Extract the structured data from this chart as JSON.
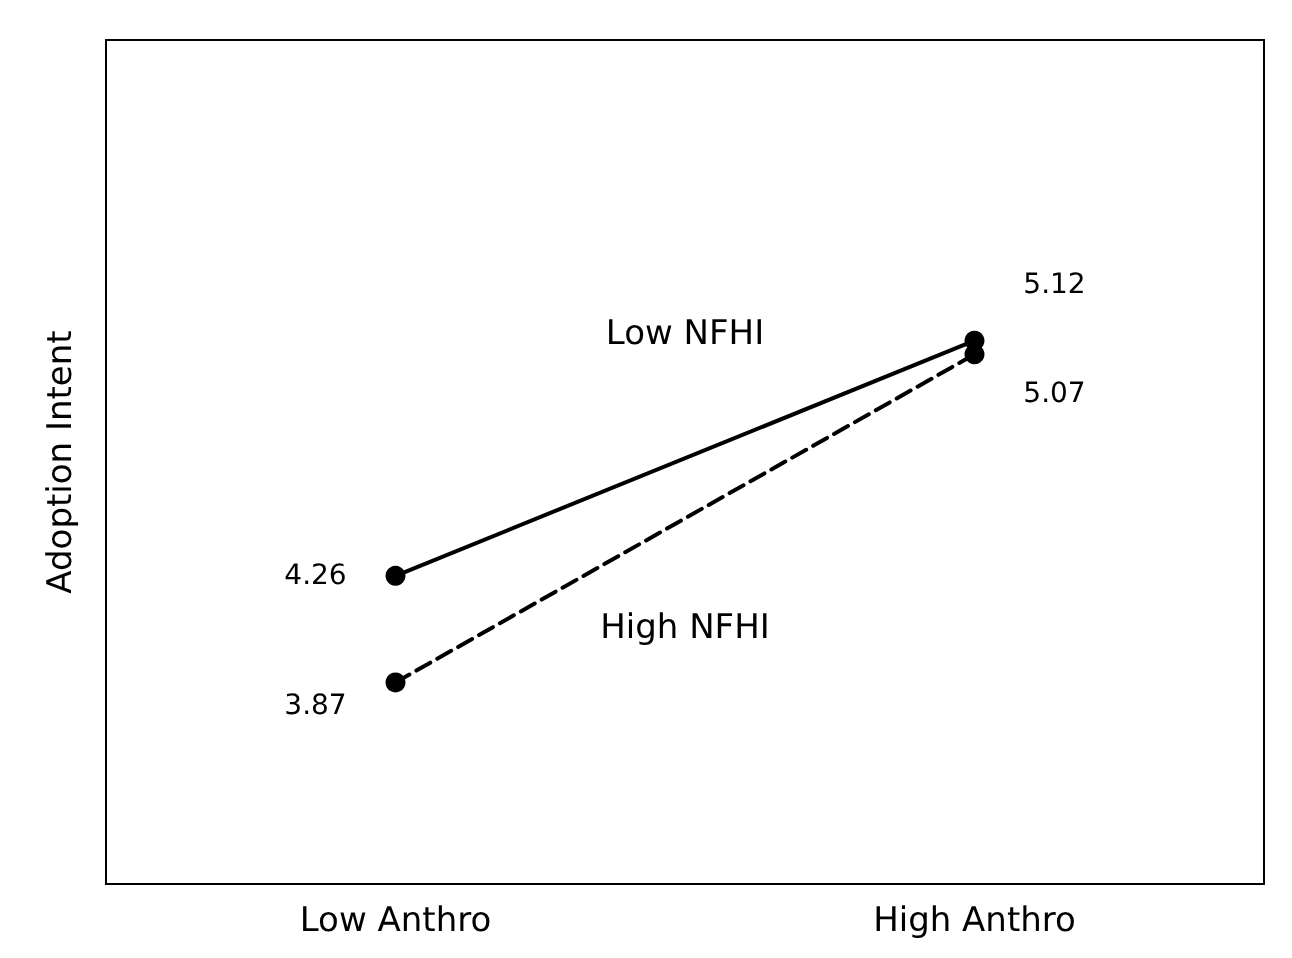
{
  "chart_data": {
    "type": "line",
    "ylabel": "Adoption Intent",
    "categories": [
      "Low Anthro",
      "High Anthro"
    ],
    "series": [
      {
        "name": "Low NFHI",
        "color": "#000000",
        "line_style": "solid",
        "values": [
          4.26,
          5.12
        ]
      },
      {
        "name": "High NFHI",
        "color": "#000000",
        "line_style": "dashed",
        "values": [
          3.87,
          5.07
        ]
      }
    ],
    "data_labels": true,
    "marker": "circle",
    "legend": false,
    "grid": false
  }
}
